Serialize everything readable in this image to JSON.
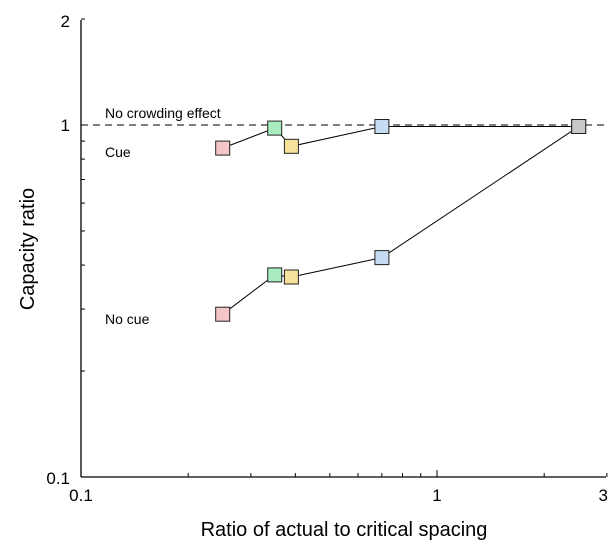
{
  "chart_data": {
    "type": "scatter",
    "title": "",
    "xlabel": "Ratio of actual to critical spacing",
    "ylabel": "Capacity ratio",
    "xscale": "log",
    "yscale": "log",
    "xlim": [
      0.1,
      3
    ],
    "ylim": [
      0.1,
      2
    ],
    "x_tick_labels": [
      "0.1",
      "1",
      "3"
    ],
    "y_tick_labels": [
      "0.1",
      "1",
      "2"
    ],
    "reference_line": {
      "y": 1,
      "style": "dashed",
      "label": "No crowding effect"
    },
    "annotations": [
      "Cue",
      "No cue"
    ],
    "grid": false,
    "series": [
      {
        "points": [
          {
            "x": 0.25,
            "y": 0.86,
            "color": "#f4c6c6"
          },
          {
            "x": 0.35,
            "y": 0.98,
            "color": "#a8ecc0"
          },
          {
            "x": 0.39,
            "y": 0.87,
            "color": "#f6e29a"
          },
          {
            "x": 0.7,
            "y": 0.99,
            "color": "#c6dcf2"
          },
          {
            "x": 2.5,
            "y": 0.99,
            "color": "#c8c8c8"
          }
        ]
      },
      {
        "points": [
          {
            "x": 0.25,
            "y": 0.29,
            "color": "#f4c6c6"
          },
          {
            "x": 0.35,
            "y": 0.375,
            "color": "#a8ecc0"
          },
          {
            "x": 0.39,
            "y": 0.37,
            "color": "#f6e29a"
          },
          {
            "x": 0.7,
            "y": 0.42,
            "color": "#c6dcf2"
          },
          {
            "x": 2.5,
            "y": 0.99,
            "color": "#c8c8c8"
          }
        ]
      }
    ]
  }
}
